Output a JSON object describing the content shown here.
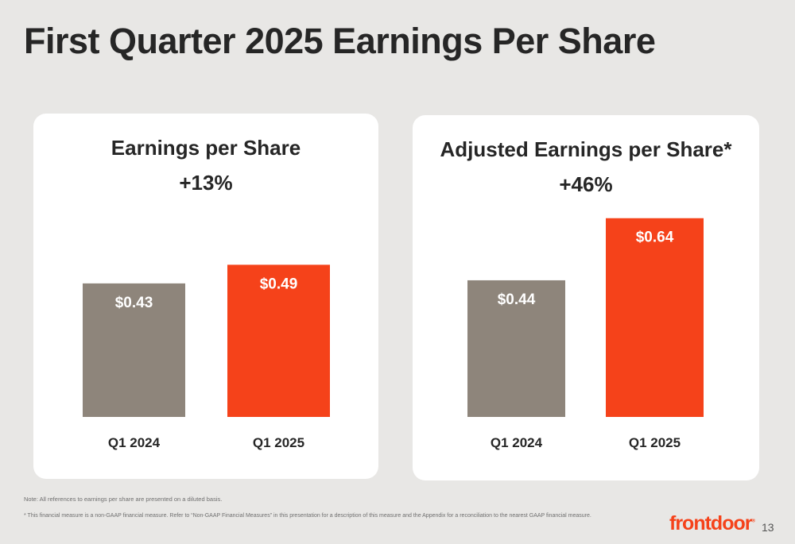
{
  "page": {
    "title": "First Quarter 2025 Earnings Per Share",
    "note": "Note: All references to earnings per share are presented on a diluted basis.",
    "footnote": "* This financial measure is a non-GAAP financial measure. Refer to “Non-GAAP Financial Measures” in this presentation for a description of this measure and the Appendix for a reconciliation to the nearest GAAP financial measure.",
    "logo_text": "frontdoor",
    "page_number": "13"
  },
  "colors": {
    "background": "#e8e7e5",
    "prior_bar": "#8e857b",
    "current_bar": "#f5421a",
    "text": "#262626"
  },
  "chart_data": [
    {
      "type": "bar",
      "title": "Earnings per Share",
      "subtitle": "+13%",
      "categories": [
        "Q1 2024",
        "Q1 2025"
      ],
      "values": [
        0.43,
        0.49
      ],
      "data_labels": [
        "$0.43",
        "$0.49"
      ],
      "bar_colors": [
        "#8e857b",
        "#f5421a"
      ],
      "ylim": [
        0,
        0.78
      ],
      "grid": false,
      "legend": "none"
    },
    {
      "type": "bar",
      "title": "Adjusted Earnings per Share*",
      "subtitle": "+46%",
      "categories": [
        "Q1 2024",
        "Q1 2025"
      ],
      "values": [
        0.44,
        0.64
      ],
      "data_labels": [
        "$0.44",
        "$0.64"
      ],
      "bar_colors": [
        "#8e857b",
        "#f5421a"
      ],
      "ylim": [
        0,
        0.78
      ],
      "grid": false,
      "legend": "none"
    }
  ]
}
